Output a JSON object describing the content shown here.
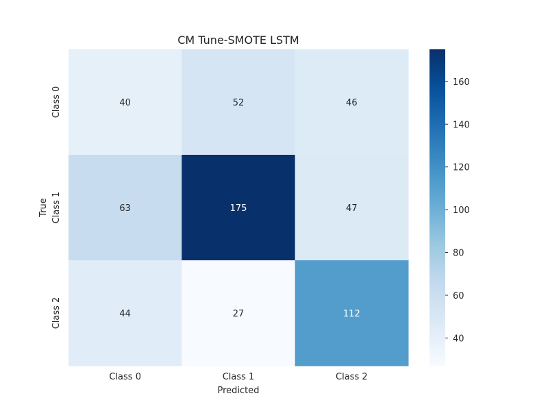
{
  "chart_data": {
    "type": "heatmap",
    "title": "CM Tune-SMOTE LSTM",
    "xlabel": "Predicted",
    "ylabel": "True",
    "x_categories": [
      "Class 0",
      "Class 1",
      "Class 2"
    ],
    "y_categories": [
      "Class 0",
      "Class 1",
      "Class 2"
    ],
    "values": [
      [
        40,
        52,
        46
      ],
      [
        63,
        175,
        47
      ],
      [
        44,
        27,
        112
      ]
    ],
    "colormap": "Blues",
    "color_range": [
      27,
      175
    ],
    "colorbar_ticks": [
      40,
      60,
      80,
      100,
      120,
      140,
      160
    ]
  }
}
